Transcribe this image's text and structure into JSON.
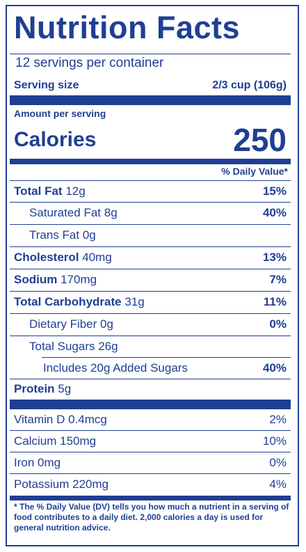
{
  "title": "Nutrition Facts",
  "servings_per_container": "12 servings per container",
  "serving_size_label": "Serving size",
  "serving_size_value": "2/3 cup (106g)",
  "amount_per_serving": "Amount per serving",
  "calories_label": "Calories",
  "calories_value": "250",
  "daily_value_header": "% Daily Value*",
  "nutrients": [
    {
      "name": "Total Fat",
      "amount": "12g",
      "dv": "15%"
    },
    {
      "name": "Saturated Fat",
      "amount": "8g",
      "dv": "40%"
    },
    {
      "name": "Trans Fat",
      "amount": "0g",
      "dv": ""
    },
    {
      "name": "Cholesterol",
      "amount": "40mg",
      "dv": "13%"
    },
    {
      "name": "Sodium",
      "amount": "170mg",
      "dv": "7%"
    },
    {
      "name": "Total Carbohydrate",
      "amount": "31g",
      "dv": "11%"
    },
    {
      "name": "Dietary Fiber",
      "amount": "0g",
      "dv": "0%"
    },
    {
      "name": "Total Sugars",
      "amount": "26g",
      "dv": ""
    },
    {
      "name": "Includes 20g Added Sugars",
      "amount": "",
      "dv": "40%"
    },
    {
      "name": "Protein",
      "amount": "5g",
      "dv": ""
    }
  ],
  "vitamins": [
    {
      "name": "Vitamin D",
      "amount": "0.4mcg",
      "dv": "2%"
    },
    {
      "name": "Calcium",
      "amount": "150mg",
      "dv": "10%"
    },
    {
      "name": "Iron",
      "amount": "0mg",
      "dv": "0%"
    },
    {
      "name": "Potassium",
      "amount": "220mg",
      "dv": "4%"
    }
  ],
  "footnote": "* The % Daily Value (DV) tells you how much a nutrient in a serving of food contributes to a daily diet. 2,000 calories a day is used for general nutrition advice.",
  "colors": {
    "ink": "#1f3f93",
    "background": "#ffffff"
  }
}
